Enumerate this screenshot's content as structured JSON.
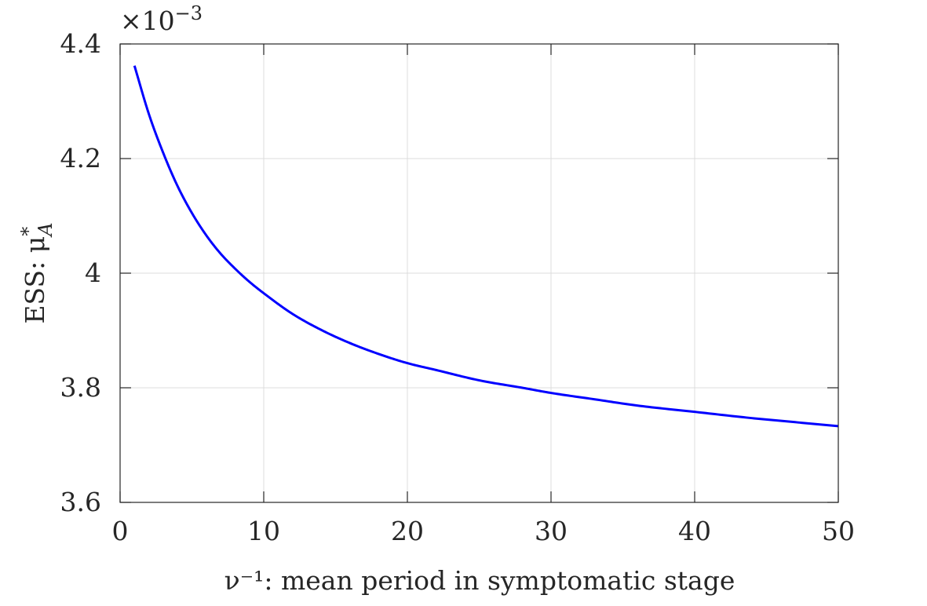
{
  "chart_data": {
    "type": "line",
    "title": "",
    "xlabel": "ν⁻¹: mean period in symptomatic stage",
    "ylabel": "ESS: μ*_A",
    "ylabel_main": "ESS: μ",
    "ylabel_sup": "*",
    "ylabel_sub": "A",
    "y_multiplier": "×10⁻³",
    "y_multiplier_base": "×10",
    "y_multiplier_exp": "−3",
    "xlim": [
      0,
      50
    ],
    "ylim": [
      3.6,
      4.4
    ],
    "xticks": [
      0,
      10,
      20,
      30,
      40,
      50
    ],
    "yticks": [
      3.6,
      3.8,
      4.0,
      4.2,
      4.4
    ],
    "xtick_labels": [
      "0",
      "10",
      "20",
      "30",
      "40",
      "50"
    ],
    "ytick_labels": [
      "3.6",
      "3.8",
      "4",
      "4.2",
      "4.4"
    ],
    "grid": true,
    "line_color": "#0000ff",
    "series": [
      {
        "x": [
          1,
          2,
          3,
          4,
          5,
          6,
          7,
          8,
          9,
          10,
          12,
          14,
          16,
          18,
          20,
          22,
          25,
          28,
          30,
          33,
          36,
          40,
          44,
          47,
          50
        ],
        "values": [
          4.362,
          4.278,
          4.21,
          4.152,
          4.105,
          4.066,
          4.034,
          4.008,
          3.985,
          3.965,
          3.929,
          3.901,
          3.878,
          3.859,
          3.843,
          3.831,
          3.813,
          3.8,
          3.791,
          3.78,
          3.769,
          3.758,
          3.747,
          3.74,
          3.733
        ]
      }
    ]
  }
}
